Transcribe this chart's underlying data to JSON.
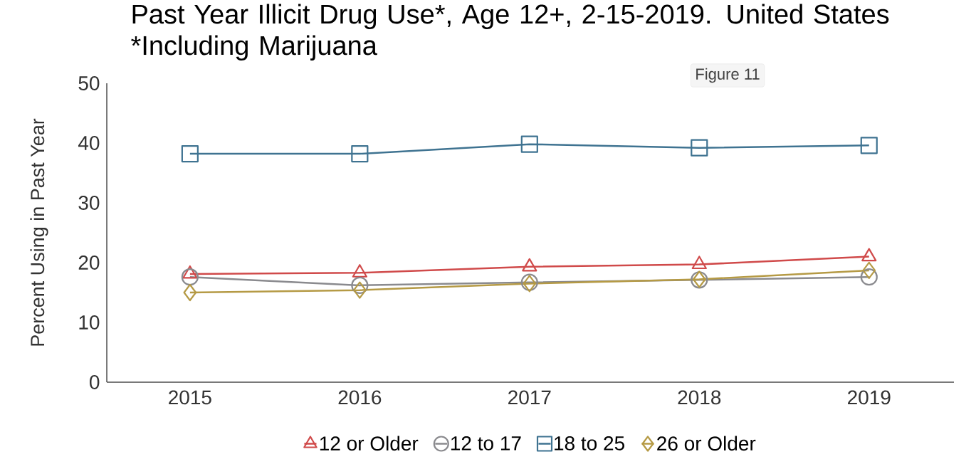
{
  "chart_data": {
    "type": "line",
    "title": "Past Year Illicit Drug Use*, Age 12+, 2-15-2019. United States",
    "subtitle": "*Including Marijuana",
    "ylabel": "Percent Using in Past Year",
    "annotations": [
      "Figure 11"
    ],
    "categories": [
      "2015",
      "2016",
      "2017",
      "2018",
      "2019"
    ],
    "series": [
      {
        "name": "12 or Older",
        "color": "#d04a4a",
        "marker": "triangle",
        "values": [
          18.1,
          18.3,
          19.3,
          19.7,
          21.0
        ]
      },
      {
        "name": "12 to 17",
        "color": "#8a8a8e",
        "marker": "circle",
        "values": [
          17.6,
          16.2,
          16.7,
          17.1,
          17.6
        ]
      },
      {
        "name": "18 to 25",
        "color": "#3f7391",
        "marker": "square",
        "values": [
          38.2,
          38.2,
          39.8,
          39.2,
          39.6
        ]
      },
      {
        "name": "26 or Older",
        "color": "#b59a45",
        "marker": "diamond",
        "values": [
          15.0,
          15.4,
          16.5,
          17.2,
          18.7
        ]
      }
    ],
    "ylim": [
      0,
      50
    ],
    "yticks": [
      0,
      10,
      20,
      30,
      40,
      50
    ],
    "grid": false,
    "legend": "bottom",
    "line_style": "solid"
  }
}
